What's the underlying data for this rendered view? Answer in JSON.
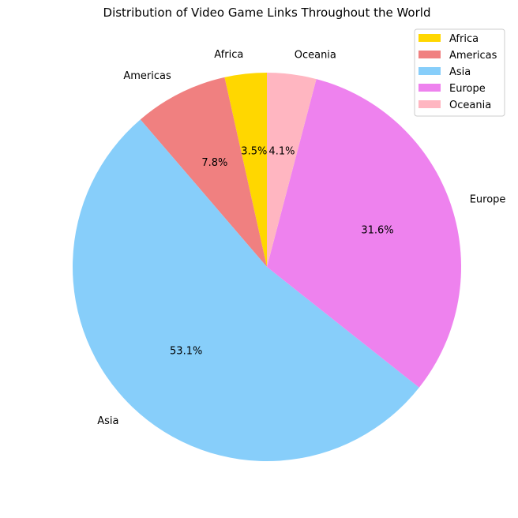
{
  "chart_data": {
    "type": "pie",
    "title": "Distribution of Video Game Links Throughout the World",
    "legend_position": "top-right",
    "start_angle_deg": 90,
    "direction": "counterclockwise",
    "slices": [
      {
        "label": "Africa",
        "value": 3.5,
        "pct_label": "3.5%",
        "color": "#FFD700"
      },
      {
        "label": "Americas",
        "value": 7.8,
        "pct_label": "7.8%",
        "color": "#F08080"
      },
      {
        "label": "Asia",
        "value": 53.1,
        "pct_label": "53.1%",
        "color": "#87CEFA"
      },
      {
        "label": "Europe",
        "value": 31.6,
        "pct_label": "31.6%",
        "color": "#EE82EE"
      },
      {
        "label": "Oceania",
        "value": 4.1,
        "pct_label": "4.1%",
        "color": "#FFB6C1"
      }
    ]
  }
}
